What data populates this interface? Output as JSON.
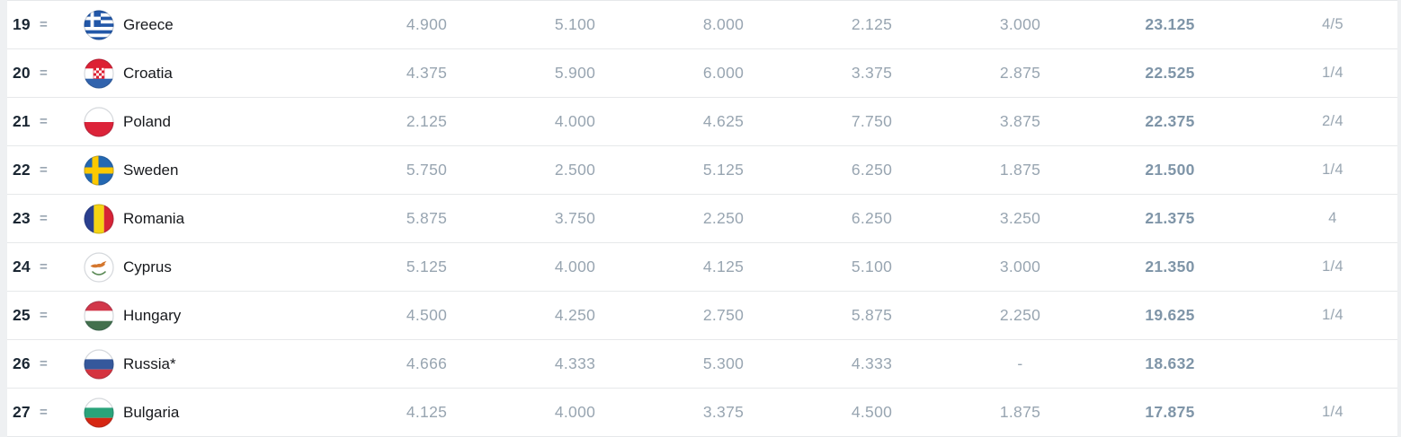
{
  "page": {
    "background_color": "#eef0f2",
    "row_background_color": "#ffffff",
    "divider_color": "#e6e8ea"
  },
  "text_colors": {
    "rank": "#1b2733",
    "movement": "#9aa6b2",
    "country": "#17191d",
    "value": "#98a5b1",
    "total": "#7f95a8"
  },
  "table": {
    "rows": [
      {
        "rank": "19",
        "movement": "=",
        "flag": "greece",
        "country": "Greece",
        "values": [
          "4.900",
          "5.100",
          "8.000",
          "2.125",
          "3.000"
        ],
        "total": "23.125",
        "clubs": "4/5"
      },
      {
        "rank": "20",
        "movement": "=",
        "flag": "croatia",
        "country": "Croatia",
        "values": [
          "4.375",
          "5.900",
          "6.000",
          "3.375",
          "2.875"
        ],
        "total": "22.525",
        "clubs": "1/4"
      },
      {
        "rank": "21",
        "movement": "=",
        "flag": "poland",
        "country": "Poland",
        "values": [
          "2.125",
          "4.000",
          "4.625",
          "7.750",
          "3.875"
        ],
        "total": "22.375",
        "clubs": "2/4"
      },
      {
        "rank": "22",
        "movement": "=",
        "flag": "sweden",
        "country": "Sweden",
        "values": [
          "5.750",
          "2.500",
          "5.125",
          "6.250",
          "1.875"
        ],
        "total": "21.500",
        "clubs": "1/4"
      },
      {
        "rank": "23",
        "movement": "=",
        "flag": "romania",
        "country": "Romania",
        "values": [
          "5.875",
          "3.750",
          "2.250",
          "6.250",
          "3.250"
        ],
        "total": "21.375",
        "clubs": "4"
      },
      {
        "rank": "24",
        "movement": "=",
        "flag": "cyprus",
        "country": "Cyprus",
        "values": [
          "5.125",
          "4.000",
          "4.125",
          "5.100",
          "3.000"
        ],
        "total": "21.350",
        "clubs": "1/4"
      },
      {
        "rank": "25",
        "movement": "=",
        "flag": "hungary",
        "country": "Hungary",
        "values": [
          "4.500",
          "4.250",
          "2.750",
          "5.875",
          "2.250"
        ],
        "total": "19.625",
        "clubs": "1/4"
      },
      {
        "rank": "26",
        "movement": "=",
        "flag": "russia",
        "country": "Russia*",
        "values": [
          "4.666",
          "4.333",
          "5.300",
          "4.333",
          "-"
        ],
        "total": "18.632",
        "clubs": ""
      },
      {
        "rank": "27",
        "movement": "=",
        "flag": "bulgaria",
        "country": "Bulgaria",
        "values": [
          "4.125",
          "4.000",
          "3.375",
          "4.500",
          "1.875"
        ],
        "total": "17.875",
        "clubs": "1/4"
      }
    ]
  }
}
